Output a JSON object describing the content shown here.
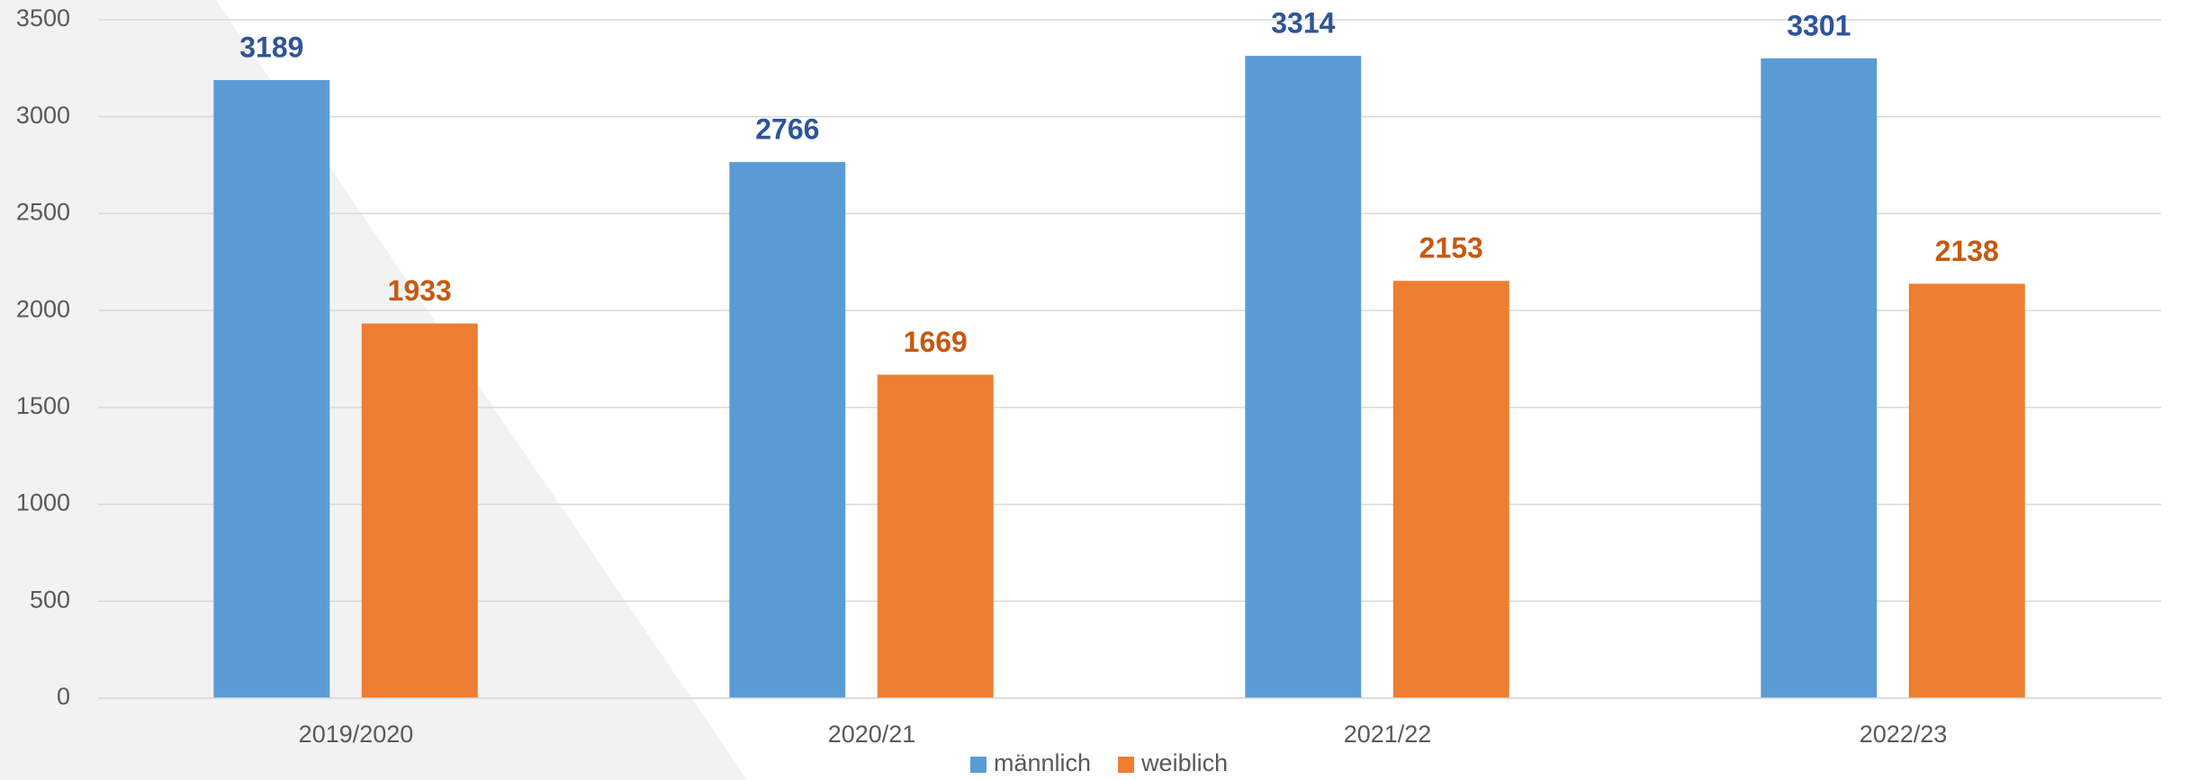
{
  "chart_data": {
    "type": "bar",
    "categories": [
      "2019/2020",
      "2020/21",
      "2021/22",
      "2022/23"
    ],
    "series": [
      {
        "name": "männlich",
        "color": "#5b9bd5",
        "label_color": "#2f5597",
        "values": [
          3189,
          2766,
          3314,
          3301
        ]
      },
      {
        "name": "weiblich",
        "color": "#ed7d31",
        "label_color": "#c55a11",
        "values": [
          1933,
          1669,
          2153,
          2138
        ]
      }
    ],
    "ylim": [
      0,
      3500
    ],
    "yticks": [
      0,
      500,
      1000,
      1500,
      2000,
      2500,
      3000,
      3500
    ],
    "grid": true,
    "legend": "bottom"
  }
}
